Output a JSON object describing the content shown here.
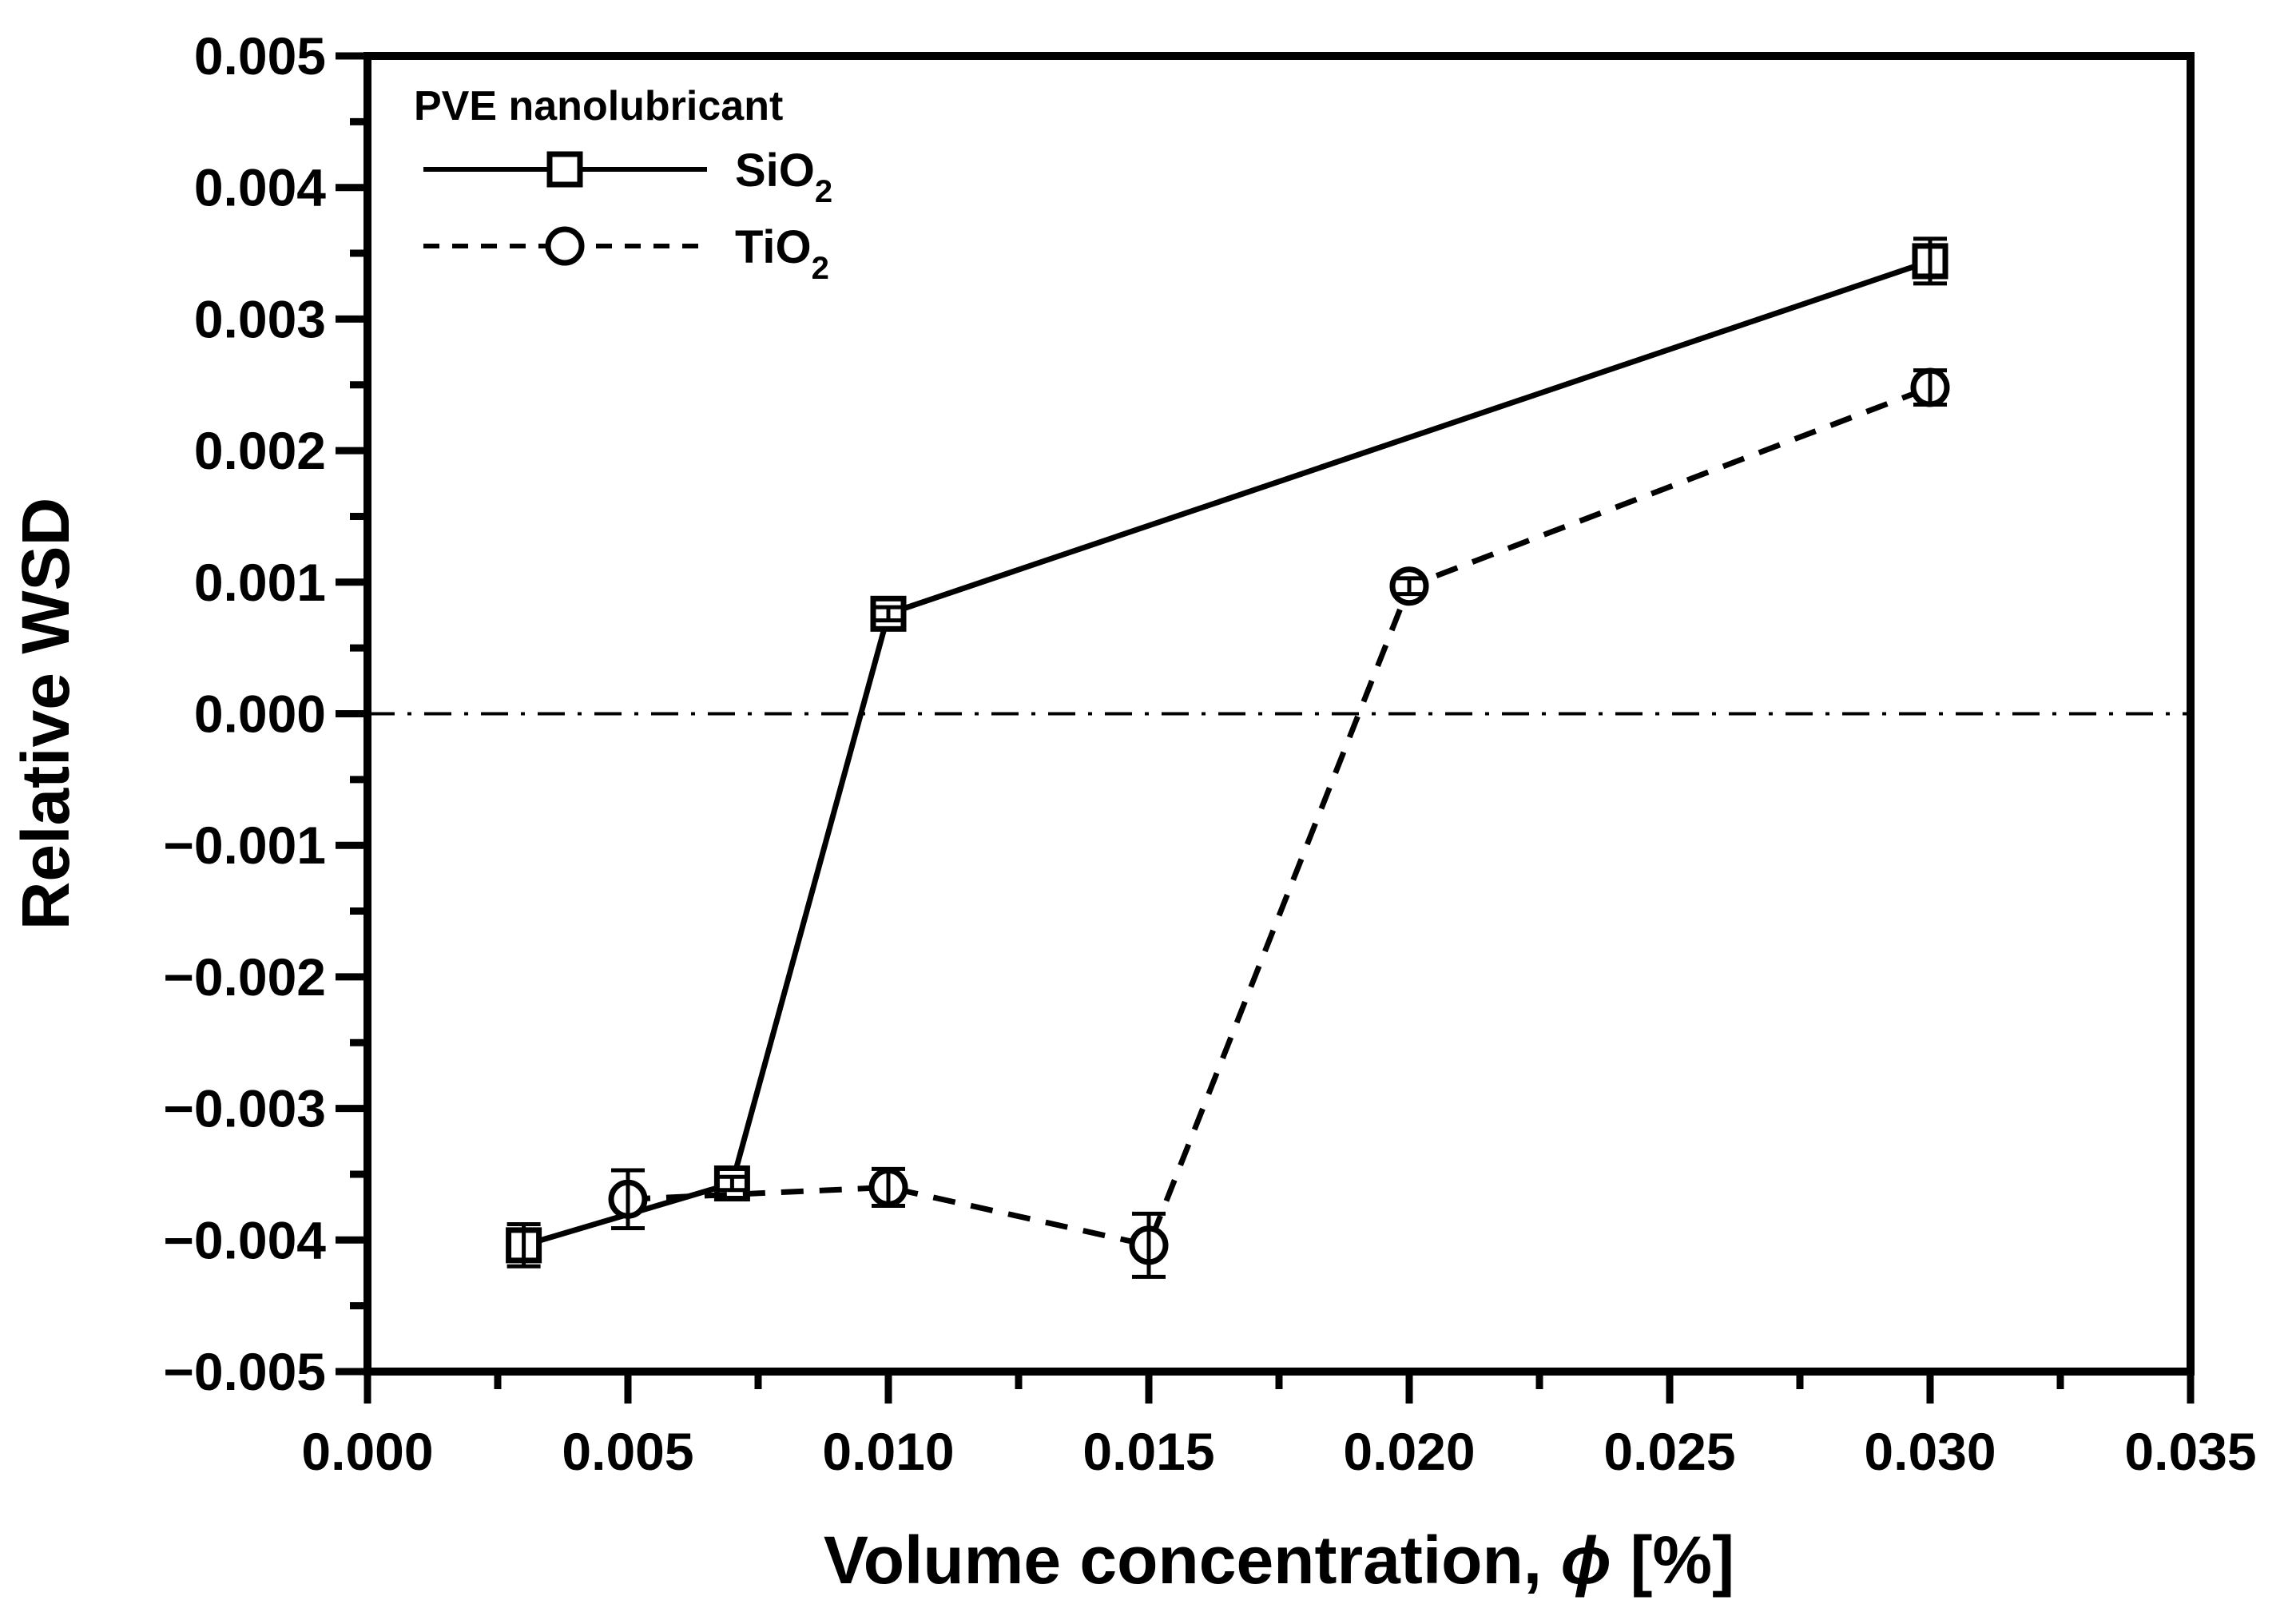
{
  "chart_data": {
    "type": "line",
    "title": "",
    "xlabel": "Volume concentration, ϕ [%]",
    "xlabel_parts": {
      "prefix": "Volume concentration, ",
      "symbol": "ϕ",
      "suffix": " [%]"
    },
    "ylabel": "Relative WSD",
    "xlim": [
      0.0,
      0.035
    ],
    "ylim": [
      -0.005,
      0.005
    ],
    "x_major_step": 0.005,
    "x_minor_step": 0.0025,
    "y_major_step": 0.001,
    "y_minor_step": 0.0005,
    "x_tick_labels": [
      "0.000",
      "0.005",
      "0.010",
      "0.015",
      "0.020",
      "0.025",
      "0.030",
      "0.035"
    ],
    "y_tick_labels": [
      "−0.005",
      "−0.004",
      "−0.003",
      "−0.002",
      "−0.001",
      "0.000",
      "0.001",
      "0.002",
      "0.003",
      "0.004",
      "0.005"
    ],
    "grid": false,
    "zero_reference_line": true,
    "legend": {
      "position": "top-left",
      "header": "PVE nanolubricant",
      "entries": [
        {
          "label": "SiO",
          "subscript": "2",
          "marker": "square",
          "line": "solid"
        },
        {
          "label": "TiO",
          "subscript": "2",
          "marker": "circle",
          "line": "dashed"
        }
      ]
    },
    "series": [
      {
        "name": "SiO2",
        "marker": "square",
        "line": "solid",
        "x": [
          0.003,
          0.007,
          0.01,
          0.03
        ],
        "y": [
          -0.00404,
          -0.00357,
          0.00076,
          0.00344
        ],
        "yerr": [
          0.00016,
          5e-05,
          5e-05,
          0.00017
        ]
      },
      {
        "name": "TiO2",
        "marker": "circle",
        "line": "dashed",
        "x": [
          0.005,
          0.01,
          0.015,
          0.02,
          0.03
        ],
        "y": [
          -0.00369,
          -0.0036,
          -0.00404,
          0.00097,
          0.00248
        ],
        "yerr": [
          0.00022,
          0.00014,
          0.00024,
          6e-05,
          0.00013
        ]
      }
    ],
    "colors": {
      "foreground": "#000000",
      "background": "#ffffff"
    }
  }
}
